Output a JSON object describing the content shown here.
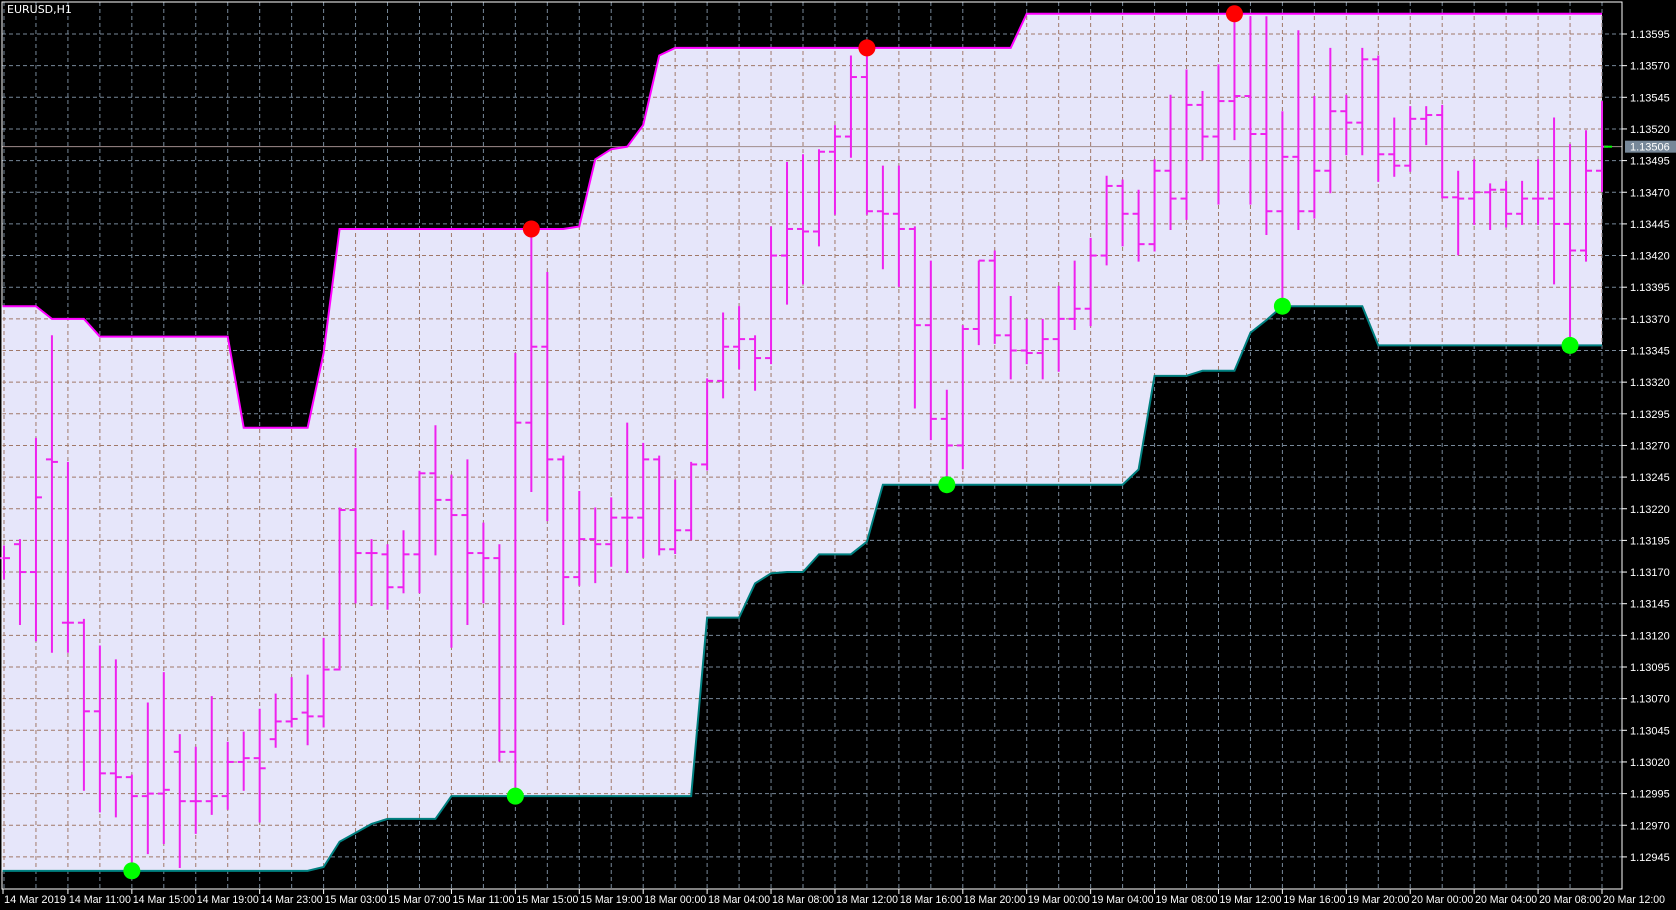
{
  "window": {
    "title": "EURUSD,H1"
  },
  "colors": {
    "background": "#000000",
    "channel_fill": "#e6e6fa",
    "upper_band": "#ff00ff",
    "lower_band": "#008080",
    "bars": "#ee22ee",
    "high_dot": "#ff0000",
    "low_dot": "#00ff00",
    "grid_dark": "#778899",
    "grid_light": "#a07868",
    "price_label_bg": "#778899"
  },
  "chart_data": {
    "type": "ohlc-bars",
    "symbol": "EURUSD",
    "timeframe": "H1",
    "grid": true,
    "ylim": [
      1.12922,
      1.1362
    ],
    "current_price": "1.13506",
    "y_ticks": [
      "1.13595",
      "1.13570",
      "1.13545",
      "1.13520",
      "1.13495",
      "1.13470",
      "1.13445",
      "1.13420",
      "1.13395",
      "1.13370",
      "1.13345",
      "1.13320",
      "1.13295",
      "1.13270",
      "1.13245",
      "1.13220",
      "1.13195",
      "1.13170",
      "1.13145",
      "1.13120",
      "1.13095",
      "1.13070",
      "1.13045",
      "1.13020",
      "1.12995",
      "1.12970",
      "1.12945"
    ],
    "x_ticks": [
      "14 Mar 2019",
      "14 Mar 11:00",
      "14 Mar 15:00",
      "14 Mar 19:00",
      "14 Mar 23:00",
      "15 Mar 03:00",
      "15 Mar 07:00",
      "15 Mar 11:00",
      "15 Mar 15:00",
      "15 Mar 19:00",
      "18 Mar 00:00",
      "18 Mar 04:00",
      "18 Mar 08:00",
      "18 Mar 12:00",
      "18 Mar 16:00",
      "18 Mar 20:00",
      "19 Mar 00:00",
      "19 Mar 04:00",
      "19 Mar 08:00",
      "19 Mar 12:00",
      "19 Mar 16:00",
      "19 Mar 20:00",
      "20 Mar 00:00",
      "20 Mar 04:00",
      "20 Mar 08:00",
      "20 Mar 12:00"
    ],
    "ohlc_fields": [
      "open",
      "high",
      "low",
      "close"
    ],
    "ohlc": [
      [
        1.13181,
        1.13191,
        1.13165,
        1.13181
      ],
      [
        1.13192,
        1.13196,
        1.13129,
        1.1317
      ],
      [
        1.1317,
        1.13276,
        1.13116,
        1.13229
      ],
      [
        1.13259,
        1.13357,
        1.13107,
        1.13257
      ],
      [
        1.1313,
        1.13257,
        1.13107,
        1.1313
      ],
      [
        1.1313,
        1.13133,
        1.12998,
        1.1306
      ],
      [
        1.1306,
        1.13112,
        1.12981,
        1.13011
      ],
      [
        1.13011,
        1.13101,
        1.12977,
        1.13008
      ],
      [
        1.13008,
        1.1301,
        1.12934,
        1.12993
      ],
      [
        1.12993,
        1.13067,
        1.12948,
        1.12995
      ],
      [
        1.12995,
        1.13091,
        1.12956,
        1.12998
      ],
      [
        1.13028,
        1.13042,
        1.12937,
        1.12989
      ],
      [
        1.12989,
        1.13032,
        1.12964,
        1.12989
      ],
      [
        1.12989,
        1.13072,
        1.12979,
        1.12993
      ],
      [
        1.12993,
        1.13036,
        1.12983,
        1.1302
      ],
      [
        1.1302,
        1.13044,
        1.12998,
        1.13023
      ],
      [
        1.13023,
        1.13062,
        1.12973,
        1.13015
      ],
      [
        1.13038,
        1.13074,
        1.13032,
        1.13052
      ],
      [
        1.13052,
        1.13087,
        1.13048,
        1.13054
      ],
      [
        1.13059,
        1.13089,
        1.13034,
        1.13056
      ],
      [
        1.13056,
        1.13118,
        1.13048,
        1.13093
      ],
      [
        1.13093,
        1.13221,
        1.13093,
        1.13219
      ],
      [
        1.13219,
        1.13268,
        1.13146,
        1.13185
      ],
      [
        1.13185,
        1.13196,
        1.13144,
        1.13185
      ],
      [
        1.13184,
        1.13192,
        1.13141,
        1.13158
      ],
      [
        1.13158,
        1.13203,
        1.13154,
        1.13184
      ],
      [
        1.13184,
        1.1325,
        1.13154,
        1.13248
      ],
      [
        1.13248,
        1.13286,
        1.13184,
        1.13227
      ],
      [
        1.13227,
        1.13247,
        1.13111,
        1.13215
      ],
      [
        1.13215,
        1.13259,
        1.13129,
        1.13185
      ],
      [
        1.13185,
        1.13209,
        1.13146,
        1.13181
      ],
      [
        1.13181,
        1.13192,
        1.13021,
        1.13028
      ],
      [
        1.13028,
        1.13343,
        1.12993,
        1.13288
      ],
      [
        1.13288,
        1.13441,
        1.13234,
        1.13348
      ],
      [
        1.13348,
        1.13407,
        1.13211,
        1.13259
      ],
      [
        1.13259,
        1.13262,
        1.13129,
        1.13166
      ],
      [
        1.13166,
        1.13234,
        1.1316,
        1.13196
      ],
      [
        1.13196,
        1.13221,
        1.13162,
        1.13192
      ],
      [
        1.13192,
        1.13229,
        1.13175,
        1.13213
      ],
      [
        1.13213,
        1.13288,
        1.1317,
        1.13213
      ],
      [
        1.13213,
        1.13272,
        1.13182,
        1.13259
      ],
      [
        1.13259,
        1.13262,
        1.13184,
        1.13188
      ],
      [
        1.13188,
        1.13243,
        1.13185,
        1.13203
      ],
      [
        1.13203,
        1.13257,
        1.13196,
        1.13255
      ],
      [
        1.13255,
        1.13323,
        1.13251,
        1.13321
      ],
      [
        1.13321,
        1.13375,
        1.13308,
        1.13348
      ],
      [
        1.13348,
        1.1338,
        1.13331,
        1.13354
      ],
      [
        1.13354,
        1.13357,
        1.13314,
        1.13339
      ],
      [
        1.13339,
        1.13443,
        1.13335,
        1.1342
      ],
      [
        1.1342,
        1.13494,
        1.13382,
        1.13441
      ],
      [
        1.13441,
        1.135,
        1.13398,
        1.13439
      ],
      [
        1.13439,
        1.13504,
        1.13428,
        1.13502
      ],
      [
        1.13502,
        1.13523,
        1.13453,
        1.13514
      ],
      [
        1.13514,
        1.13578,
        1.13498,
        1.13561
      ],
      [
        1.13561,
        1.13584,
        1.13453,
        1.13455
      ],
      [
        1.13455,
        1.13491,
        1.1341,
        1.13453
      ],
      [
        1.13453,
        1.13491,
        1.13396,
        1.13441
      ],
      [
        1.13441,
        1.13443,
        1.133,
        1.13365
      ],
      [
        1.13365,
        1.13416,
        1.13275,
        1.13291
      ],
      [
        1.13291,
        1.13314,
        1.13239,
        1.1327
      ],
      [
        1.1327,
        1.13365,
        1.13252,
        1.13362
      ],
      [
        1.13362,
        1.13416,
        1.1335,
        1.13416
      ],
      [
        1.13416,
        1.13424,
        1.13351,
        1.13357
      ],
      [
        1.13357,
        1.13388,
        1.13323,
        1.13345
      ],
      [
        1.13345,
        1.1337,
        1.13335,
        1.13343
      ],
      [
        1.13343,
        1.1337,
        1.13323,
        1.13354
      ],
      [
        1.13354,
        1.13396,
        1.13329,
        1.1337
      ],
      [
        1.1337,
        1.13416,
        1.13362,
        1.13378
      ],
      [
        1.13378,
        1.13434,
        1.13365,
        1.1342
      ],
      [
        1.1342,
        1.13483,
        1.13413,
        1.13475
      ],
      [
        1.13475,
        1.1348,
        1.13428,
        1.13453
      ],
      [
        1.13453,
        1.13472,
        1.13416,
        1.13429
      ],
      [
        1.13429,
        1.13496,
        1.13424,
        1.13487
      ],
      [
        1.13487,
        1.13547,
        1.13441,
        1.13465
      ],
      [
        1.13465,
        1.13567,
        1.13449,
        1.13539
      ],
      [
        1.13539,
        1.1355,
        1.13496,
        1.13514
      ],
      [
        1.13514,
        1.13571,
        1.13461,
        1.13542
      ],
      [
        1.13542,
        1.13611,
        1.13512,
        1.13546
      ],
      [
        1.13546,
        1.13609,
        1.13461,
        1.13516
      ],
      [
        1.13516,
        1.13609,
        1.13437,
        1.13455
      ],
      [
        1.13455,
        1.13534,
        1.1338,
        1.13498
      ],
      [
        1.13498,
        1.13598,
        1.13441,
        1.13455
      ],
      [
        1.13455,
        1.13546,
        1.1345,
        1.13487
      ],
      [
        1.13487,
        1.13584,
        1.1347,
        1.13534
      ],
      [
        1.13534,
        1.13547,
        1.135,
        1.13525
      ],
      [
        1.13525,
        1.13584,
        1.135,
        1.13575
      ],
      [
        1.13575,
        1.13578,
        1.13479,
        1.135
      ],
      [
        1.135,
        1.13529,
        1.13483,
        1.13491
      ],
      [
        1.13491,
        1.13538,
        1.13487,
        1.13528
      ],
      [
        1.13528,
        1.13538,
        1.13508,
        1.13531
      ],
      [
        1.13531,
        1.13539,
        1.13466,
        1.13466
      ],
      [
        1.13466,
        1.13487,
        1.13421,
        1.13465
      ],
      [
        1.13465,
        1.13496,
        1.13445,
        1.1347
      ],
      [
        1.1347,
        1.13477,
        1.13441,
        1.13472
      ],
      [
        1.13472,
        1.13479,
        1.13443,
        1.13453
      ],
      [
        1.13453,
        1.13479,
        1.13445,
        1.13465
      ],
      [
        1.13465,
        1.13496,
        1.13445,
        1.13465
      ],
      [
        1.13465,
        1.13529,
        1.13398,
        1.13445
      ],
      [
        1.13445,
        1.13508,
        1.13349,
        1.13424
      ],
      [
        1.13424,
        1.13519,
        1.13416,
        1.13487
      ],
      [
        1.13487,
        1.13542,
        1.13471,
        1.13506
      ]
    ],
    "upper_band": [
      1.1338,
      1.1338,
      1.1338,
      1.1337,
      1.1337,
      1.1337,
      1.13356,
      1.13356,
      1.13356,
      1.13356,
      1.13356,
      1.13356,
      1.13356,
      1.13356,
      1.13356,
      1.13284,
      1.13284,
      1.13284,
      1.13284,
      1.13284,
      1.13343,
      1.13441,
      1.13441,
      1.13441,
      1.13441,
      1.13441,
      1.13441,
      1.13441,
      1.13441,
      1.13441,
      1.13441,
      1.13441,
      1.13441,
      1.13441,
      1.13441,
      1.13441,
      1.13443,
      1.13496,
      1.13504,
      1.13506,
      1.13523,
      1.13578,
      1.13584,
      1.13584,
      1.13584,
      1.13584,
      1.13584,
      1.13584,
      1.13584,
      1.13584,
      1.13584,
      1.13584,
      1.13584,
      1.13584,
      1.13584,
      1.13584,
      1.13584,
      1.13584,
      1.13584,
      1.13584,
      1.13584,
      1.13584,
      1.13584,
      1.13584,
      1.13611,
      1.13611,
      1.13611,
      1.13611,
      1.13611,
      1.13611,
      1.13611,
      1.13611,
      1.13611,
      1.13611,
      1.13611,
      1.13611,
      1.13611,
      1.13611,
      1.13611,
      1.13611,
      1.13611,
      1.13611,
      1.13611,
      1.13611,
      1.13611,
      1.13611,
      1.13611,
      1.13611,
      1.13611,
      1.13611,
      1.13611,
      1.13611,
      1.13611,
      1.13611,
      1.13611,
      1.13611,
      1.13611,
      1.13611,
      1.13611,
      1.13611,
      1.13611
    ],
    "lower_band": [
      1.12934,
      1.12934,
      1.12934,
      1.12934,
      1.12934,
      1.12934,
      1.12934,
      1.12934,
      1.12934,
      1.12934,
      1.12934,
      1.12934,
      1.12934,
      1.12934,
      1.12934,
      1.12934,
      1.12934,
      1.12934,
      1.12934,
      1.12934,
      1.12937,
      1.12957,
      1.12964,
      1.12971,
      1.12975,
      1.12975,
      1.12975,
      1.12975,
      1.12993,
      1.12993,
      1.12993,
      1.12993,
      1.12993,
      1.12993,
      1.12993,
      1.12993,
      1.12993,
      1.12993,
      1.12993,
      1.12993,
      1.12993,
      1.12993,
      1.12993,
      1.12993,
      1.13134,
      1.13134,
      1.13134,
      1.13161,
      1.13169,
      1.1317,
      1.1317,
      1.13184,
      1.13184,
      1.13184,
      1.13194,
      1.13239,
      1.13239,
      1.13239,
      1.13239,
      1.13239,
      1.13239,
      1.13239,
      1.13239,
      1.13239,
      1.13239,
      1.13239,
      1.13239,
      1.13239,
      1.13239,
      1.13239,
      1.13239,
      1.13251,
      1.13325,
      1.13325,
      1.13325,
      1.13329,
      1.13329,
      1.13329,
      1.13359,
      1.13369,
      1.1338,
      1.1338,
      1.1338,
      1.1338,
      1.1338,
      1.1338,
      1.13349,
      1.13349,
      1.13349,
      1.13349,
      1.13349,
      1.13349,
      1.13349,
      1.13349,
      1.13349,
      1.13349,
      1.13349,
      1.13349,
      1.13349,
      1.13349,
      1.13349
    ],
    "high_dots": [
      33,
      54,
      77
    ],
    "low_dots": [
      8,
      32,
      59,
      80,
      98
    ]
  }
}
